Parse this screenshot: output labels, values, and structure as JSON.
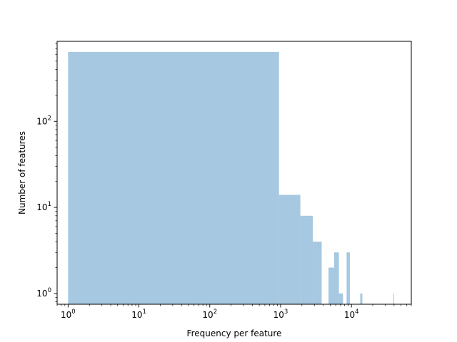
{
  "chart_data": {
    "type": "bar",
    "title": "",
    "xlabel": "Frequency per feature",
    "ylabel": "Number of features",
    "x_scale": "log",
    "y_scale": "log",
    "xlim": [
      0.7,
      70000
    ],
    "ylim": [
      0.75,
      850
    ],
    "grid": false,
    "legend": "none",
    "bar_color": "#a6c8e0",
    "x_major_ticks": [
      {
        "value": 1,
        "base": "10",
        "exp": "0"
      },
      {
        "value": 10,
        "base": "10",
        "exp": "1"
      },
      {
        "value": 100,
        "base": "10",
        "exp": "2"
      },
      {
        "value": 1000,
        "base": "10",
        "exp": "3"
      },
      {
        "value": 10000,
        "base": "10",
        "exp": "4"
      }
    ],
    "y_major_ticks": [
      {
        "value": 1,
        "base": "10",
        "exp": "0"
      },
      {
        "value": 10,
        "base": "10",
        "exp": "1"
      },
      {
        "value": 100,
        "base": "10",
        "exp": "2"
      }
    ],
    "bins": [
      {
        "x0": 1,
        "x1": 950,
        "count": 640
      },
      {
        "x0": 950,
        "x1": 1900,
        "count": 14
      },
      {
        "x0": 1900,
        "x1": 2850,
        "count": 8
      },
      {
        "x0": 2850,
        "x1": 3800,
        "count": 4
      },
      {
        "x0": 4750,
        "x1": 5700,
        "count": 2
      },
      {
        "x0": 5700,
        "x1": 6650,
        "count": 3
      },
      {
        "x0": 6650,
        "x1": 7600,
        "count": 1
      },
      {
        "x0": 8550,
        "x1": 9500,
        "count": 3
      },
      {
        "x0": 13300,
        "x1": 14250,
        "count": 1
      },
      {
        "x0": 39000,
        "x1": 39950,
        "count": 1
      }
    ]
  }
}
